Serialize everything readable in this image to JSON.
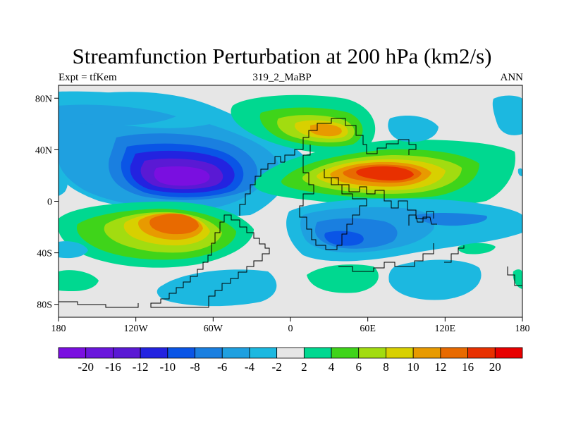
{
  "header": {
    "title": "Streamfunction Perturbation at 200 hPa (km2/s)",
    "left": "Expt = tfKem",
    "center": "319_2_MaBP",
    "right": "ANN"
  },
  "axes": {
    "lat_ticks": [
      {
        "value": 80,
        "label": "80N"
      },
      {
        "value": 40,
        "label": "40N"
      },
      {
        "value": 0,
        "label": "0"
      },
      {
        "value": -40,
        "label": "40S"
      },
      {
        "value": -80,
        "label": "80S"
      }
    ],
    "lon_ticks": [
      {
        "value": -180,
        "label": "180"
      },
      {
        "value": -120,
        "label": "120W"
      },
      {
        "value": -60,
        "label": "60W"
      },
      {
        "value": 0,
        "label": "0"
      },
      {
        "value": 60,
        "label": "60E"
      },
      {
        "value": 120,
        "label": "120E"
      },
      {
        "value": 180,
        "label": "180"
      }
    ]
  },
  "colorbar": {
    "colors": [
      "#7a0fe0",
      "#6a16dc",
      "#5a19d4",
      "#2323e0",
      "#0a55e6",
      "#1a7fe0",
      "#1fa0e0",
      "#1cb8e0",
      "#e6e6e6",
      "#00d890",
      "#3fd41a",
      "#a2dc10",
      "#d8d000",
      "#e89a00",
      "#e86a00",
      "#e83000",
      "#e80000"
    ],
    "labels": [
      "-20",
      "-16",
      "-12",
      "-10",
      "-8",
      "-6",
      "-4",
      "-2",
      "2",
      "4",
      "6",
      "8",
      "10",
      "12",
      "16",
      "20"
    ]
  },
  "features": [
    {
      "name": "low-center-east-pacific",
      "lon": -80,
      "lat": 22,
      "value": -18
    },
    {
      "name": "high-center-south-pacific",
      "lon": -78,
      "lat": -16,
      "value": 14
    },
    {
      "name": "high-center-asia",
      "lon": 80,
      "lat": 25,
      "value": 18
    },
    {
      "name": "high-center-siberia",
      "lon": 38,
      "lat": 55,
      "value": 11
    },
    {
      "name": "low-center-south-atlantic-indian",
      "lon": 38,
      "lat": -30,
      "value": -10
    }
  ]
}
